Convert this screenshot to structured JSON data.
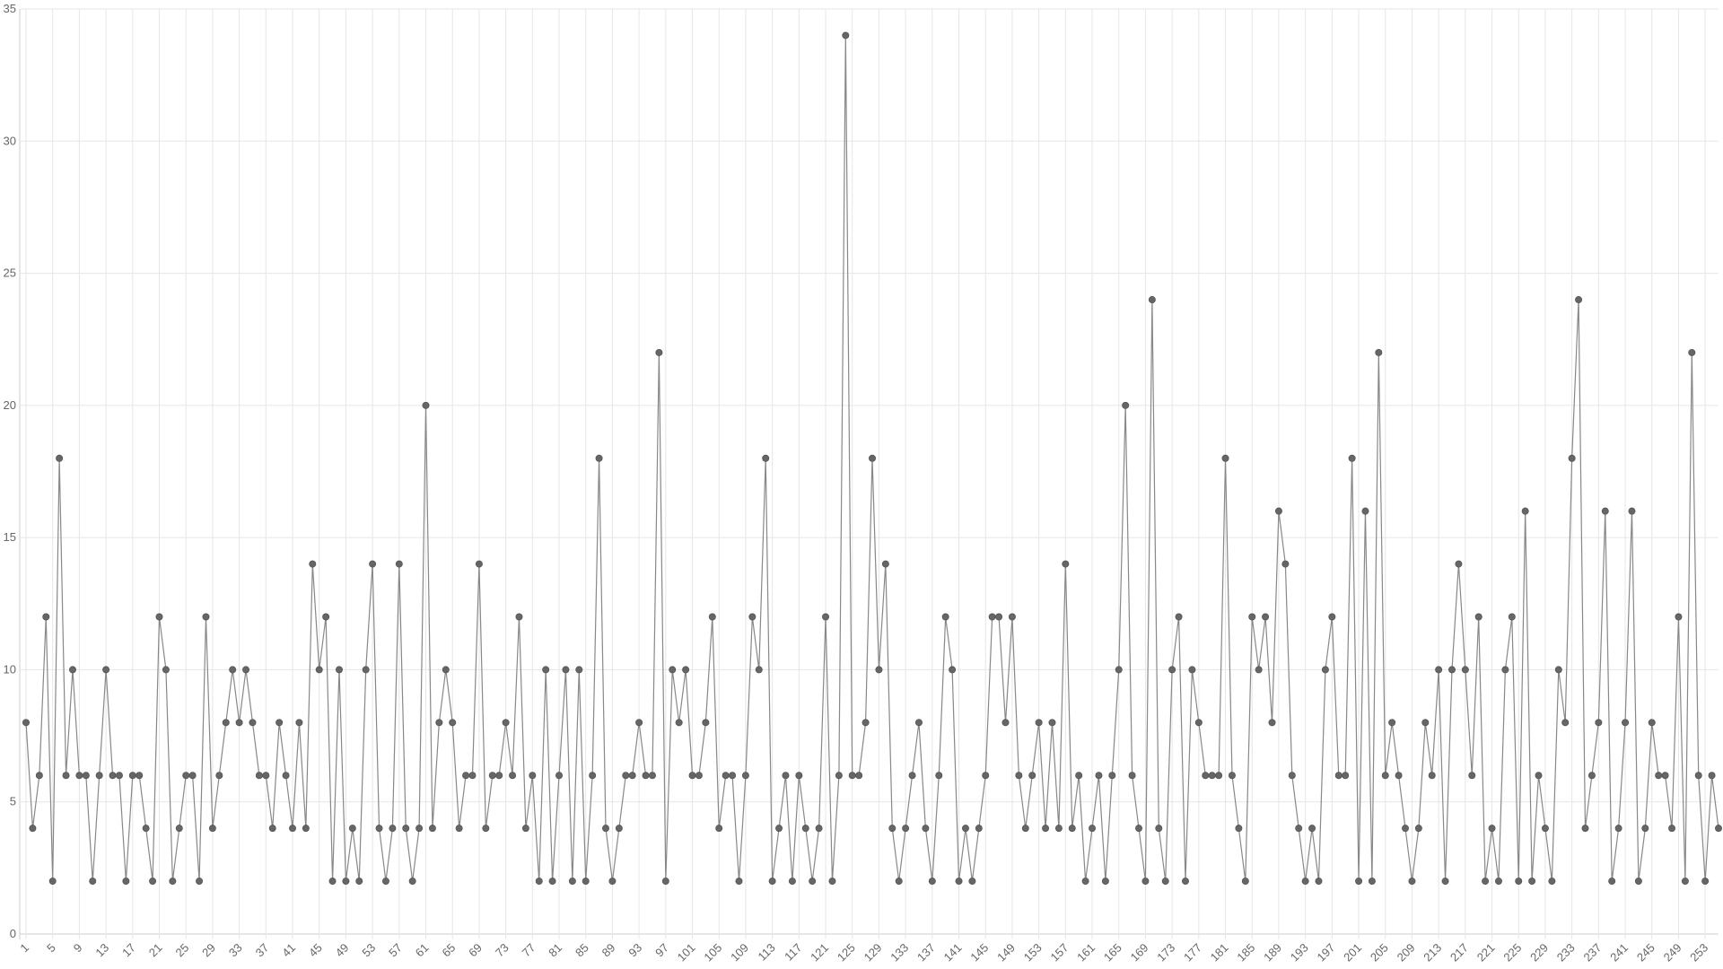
{
  "chart_data": {
    "type": "line",
    "categories": [
      1,
      null,
      null,
      null,
      5,
      null,
      null,
      null,
      9,
      null,
      null,
      null,
      13,
      null,
      null,
      null,
      17,
      null,
      null,
      null,
      21,
      null,
      null,
      null,
      25,
      null,
      null,
      null,
      29,
      null,
      null,
      null,
      33,
      null,
      null,
      null,
      37,
      null,
      null,
      null,
      41,
      null,
      null,
      null,
      45,
      null,
      null,
      null,
      49,
      null,
      null,
      null,
      53,
      null,
      null,
      null,
      57,
      null,
      null,
      null,
      61,
      null,
      null,
      null,
      65,
      null,
      null,
      null,
      69,
      null,
      null,
      null,
      73,
      null,
      null,
      null,
      77,
      null,
      null,
      null,
      81,
      null,
      null,
      null,
      85,
      null,
      null,
      null,
      89,
      null,
      null,
      null,
      93,
      null,
      null,
      null,
      97,
      null,
      null,
      null,
      101,
      null,
      null,
      null,
      105,
      null,
      null,
      null,
      109,
      null,
      null,
      null,
      113,
      null,
      null,
      null,
      117,
      null,
      null,
      null,
      121,
      null,
      null,
      null,
      125,
      null,
      null,
      null,
      129,
      null,
      null,
      null,
      133,
      null,
      null,
      null,
      137,
      null,
      null,
      null,
      141,
      null,
      null,
      null,
      145,
      null,
      null,
      null,
      149,
      null,
      null,
      null,
      153,
      null,
      null,
      null,
      157,
      null,
      null,
      null,
      161,
      null,
      null,
      null,
      165,
      null,
      null,
      null,
      169,
      null,
      null,
      null,
      173,
      null,
      null,
      null,
      177,
      null,
      null,
      null,
      181,
      null,
      null,
      null,
      185,
      null,
      null,
      null,
      189,
      null,
      null,
      null,
      193,
      null,
      null,
      null,
      197,
      null,
      null,
      null,
      201,
      null,
      null,
      null,
      205,
      null,
      null,
      null,
      209,
      null,
      null,
      null,
      213,
      null,
      null,
      null,
      217,
      null,
      null,
      null,
      221,
      null,
      null,
      null,
      225,
      null,
      null,
      null,
      229,
      null,
      null,
      null,
      233,
      null,
      null,
      null,
      237,
      null,
      null,
      null,
      241,
      null,
      null,
      null,
      245,
      null,
      null,
      null,
      249,
      null,
      null,
      null,
      253,
      null,
      null
    ],
    "values": [
      8,
      4,
      6,
      12,
      2,
      18,
      6,
      10,
      6,
      6,
      2,
      6,
      10,
      6,
      6,
      2,
      6,
      6,
      4,
      2,
      12,
      10,
      2,
      4,
      6,
      6,
      2,
      12,
      4,
      6,
      8,
      10,
      8,
      10,
      8,
      6,
      6,
      4,
      8,
      6,
      4,
      8,
      4,
      14,
      10,
      12,
      2,
      10,
      2,
      4,
      2,
      10,
      14,
      4,
      2,
      4,
      14,
      4,
      2,
      4,
      20,
      4,
      8,
      10,
      8,
      4,
      6,
      6,
      14,
      4,
      6,
      6,
      8,
      6,
      12,
      4,
      6,
      2,
      10,
      2,
      6,
      10,
      2,
      10,
      2,
      6,
      18,
      4,
      2,
      4,
      6,
      6,
      8,
      6,
      6,
      22,
      2,
      10,
      8,
      10,
      6,
      6,
      8,
      12,
      4,
      6,
      6,
      2,
      6,
      12,
      10,
      18,
      2,
      4,
      6,
      2,
      6,
      4,
      2,
      4,
      12,
      2,
      6,
      34,
      6,
      6,
      8,
      18,
      10,
      14,
      4,
      2,
      4,
      6,
      8,
      4,
      2,
      6,
      12,
      10,
      2,
      4,
      2,
      4,
      6,
      12,
      12,
      8,
      12,
      6,
      4,
      6,
      8,
      4,
      8,
      4,
      14,
      4,
      6,
      2,
      4,
      6,
      2,
      6,
      10,
      20,
      6,
      4,
      2,
      24,
      4,
      2,
      10,
      12,
      2,
      10,
      8,
      6,
      6,
      6,
      18,
      6,
      4,
      2,
      12,
      10,
      12,
      8,
      16,
      14,
      6,
      4,
      2,
      4,
      2,
      10,
      12,
      6,
      6,
      18,
      2,
      16,
      2,
      22,
      6,
      8,
      6,
      4,
      2,
      4,
      8,
      6,
      10,
      2,
      10,
      14,
      10,
      6,
      12,
      2,
      4,
      2,
      10,
      12,
      2,
      16,
      2,
      6,
      4,
      2,
      10,
      8,
      18,
      24,
      4,
      6,
      8,
      16,
      2,
      4,
      8,
      16,
      2,
      4,
      8,
      6,
      6,
      4,
      12,
      2,
      22,
      6,
      2,
      6,
      4
    ],
    "color": "#666666",
    "line_color": "#888888",
    "ylim": [
      0,
      35
    ],
    "yticks": [
      0,
      5,
      10,
      15,
      20,
      25,
      30,
      35
    ],
    "grid": true
  }
}
